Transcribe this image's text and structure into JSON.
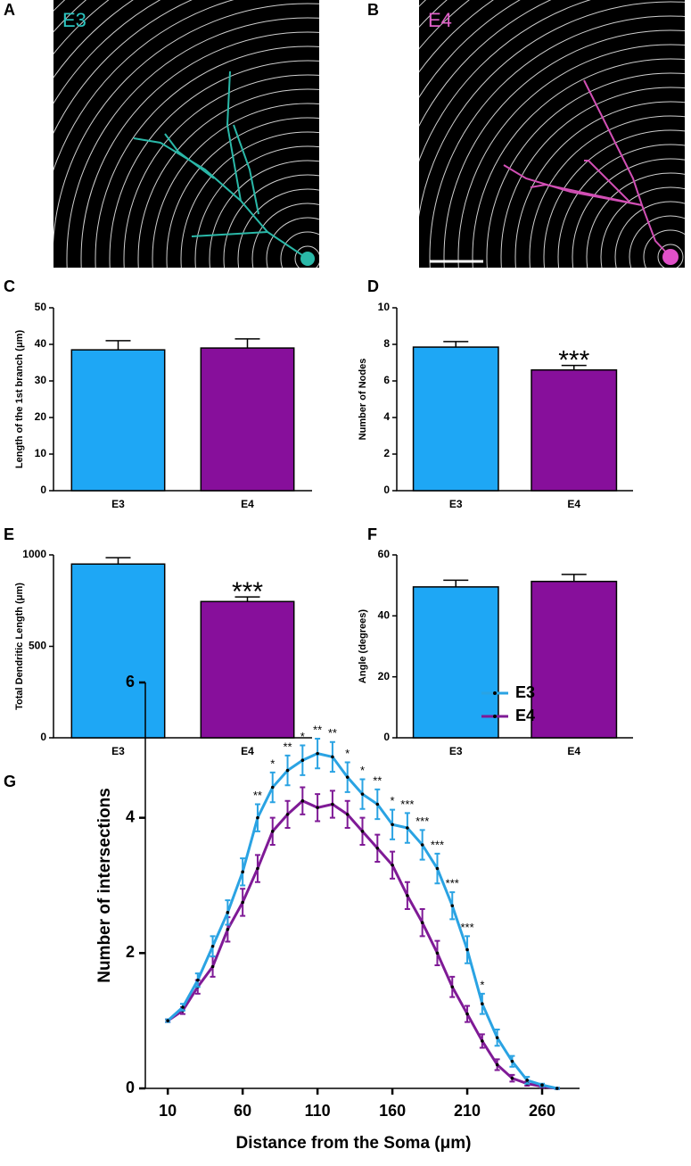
{
  "images": [
    {
      "panel": "A",
      "label": "E3"
    },
    {
      "panel": "B",
      "label": "E4"
    }
  ],
  "chart_data": [
    {
      "type": "bar",
      "panel": "C",
      "ylabel": "Length of the 1st branch (μm)",
      "categories": [
        "E3",
        "E4"
      ],
      "values": [
        38.5,
        39
      ],
      "errors": [
        2.5,
        2.5
      ],
      "colors": [
        "#1ea7f5",
        "#870f9b"
      ],
      "ylim": [
        0,
        50
      ],
      "yticks": [
        0,
        10,
        20,
        30,
        40,
        50
      ],
      "annotations": []
    },
    {
      "type": "bar",
      "panel": "D",
      "ylabel": "Number of Nodes",
      "categories": [
        "E3",
        "E4"
      ],
      "values": [
        7.85,
        6.6
      ],
      "errors": [
        0.3,
        0.25
      ],
      "colors": [
        "#1ea7f5",
        "#870f9b"
      ],
      "ylim": [
        0,
        10
      ],
      "yticks": [
        0,
        2,
        4,
        6,
        8,
        10
      ],
      "annotations": [
        {
          "category": "E4",
          "text": "***"
        }
      ]
    },
    {
      "type": "bar",
      "panel": "E",
      "ylabel": "Total Dendritic Length (μm)",
      "categories": [
        "E3",
        "E4"
      ],
      "values": [
        950,
        745
      ],
      "errors": [
        35,
        25
      ],
      "colors": [
        "#1ea7f5",
        "#870f9b"
      ],
      "ylim": [
        0,
        1000
      ],
      "yticks": [
        0,
        500,
        1000
      ],
      "annotations": [
        {
          "category": "E4",
          "text": "***"
        }
      ]
    },
    {
      "type": "bar",
      "panel": "F",
      "ylabel": "Angle (degrees)",
      "categories": [
        "E3",
        "E4"
      ],
      "values": [
        49.5,
        51.3
      ],
      "errors": [
        2.2,
        2.3
      ],
      "colors": [
        "#1ea7f5",
        "#870f9b"
      ],
      "ylim": [
        0,
        60
      ],
      "yticks": [
        0,
        20,
        40,
        60
      ],
      "annotations": []
    },
    {
      "type": "line",
      "panel": "G",
      "xlabel": "Distance from the Soma (μm)",
      "ylabel": "Number of intersections",
      "legend": "upper right",
      "x": [
        10,
        20,
        30,
        40,
        50,
        60,
        70,
        80,
        90,
        100,
        110,
        120,
        130,
        140,
        150,
        160,
        170,
        180,
        190,
        200,
        210,
        220,
        230,
        240,
        250,
        260,
        270
      ],
      "series": [
        {
          "name": "E3",
          "color": "#2aa3e3",
          "values": [
            1.0,
            1.2,
            1.6,
            2.1,
            2.6,
            3.2,
            4.0,
            4.45,
            4.7,
            4.85,
            4.95,
            4.9,
            4.6,
            4.35,
            4.2,
            3.9,
            3.85,
            3.6,
            3.25,
            2.7,
            2.05,
            1.25,
            0.75,
            0.4,
            0.12,
            0.05,
            0.0
          ],
          "errors": [
            0.02,
            0.05,
            0.1,
            0.15,
            0.18,
            0.2,
            0.2,
            0.22,
            0.22,
            0.22,
            0.22,
            0.22,
            0.22,
            0.22,
            0.22,
            0.22,
            0.22,
            0.22,
            0.22,
            0.2,
            0.2,
            0.15,
            0.12,
            0.08,
            0.05,
            0.02,
            0.01
          ]
        },
        {
          "name": "E4",
          "color": "#7f1a96",
          "values": [
            1.0,
            1.15,
            1.5,
            1.8,
            2.35,
            2.75,
            3.25,
            3.8,
            4.05,
            4.25,
            4.15,
            4.2,
            4.05,
            3.8,
            3.55,
            3.3,
            2.85,
            2.45,
            2.0,
            1.5,
            1.1,
            0.7,
            0.35,
            0.15,
            0.07,
            0.03,
            0.0
          ],
          "errors": [
            0.02,
            0.05,
            0.1,
            0.15,
            0.18,
            0.2,
            0.2,
            0.2,
            0.2,
            0.2,
            0.2,
            0.2,
            0.2,
            0.2,
            0.2,
            0.2,
            0.2,
            0.2,
            0.18,
            0.15,
            0.12,
            0.1,
            0.08,
            0.05,
            0.03,
            0.02,
            0.01
          ]
        }
      ],
      "annotations": [
        {
          "x": 70,
          "text": "**"
        },
        {
          "x": 80,
          "text": "*"
        },
        {
          "x": 90,
          "text": "**"
        },
        {
          "x": 100,
          "text": "*"
        },
        {
          "x": 110,
          "text": "**"
        },
        {
          "x": 120,
          "text": "**"
        },
        {
          "x": 130,
          "text": "*"
        },
        {
          "x": 140,
          "text": "*"
        },
        {
          "x": 150,
          "text": "**"
        },
        {
          "x": 160,
          "text": "*"
        },
        {
          "x": 170,
          "text": "***"
        },
        {
          "x": 180,
          "text": "***"
        },
        {
          "x": 190,
          "text": "***"
        },
        {
          "x": 200,
          "text": "***"
        },
        {
          "x": 210,
          "text": "***"
        },
        {
          "x": 220,
          "text": "*"
        }
      ],
      "xlim": [
        -5,
        285
      ],
      "xticks": [
        10,
        60,
        110,
        160,
        210,
        260
      ],
      "ylim": [
        0,
        6
      ],
      "yticks": [
        0,
        2,
        4,
        6
      ]
    }
  ]
}
